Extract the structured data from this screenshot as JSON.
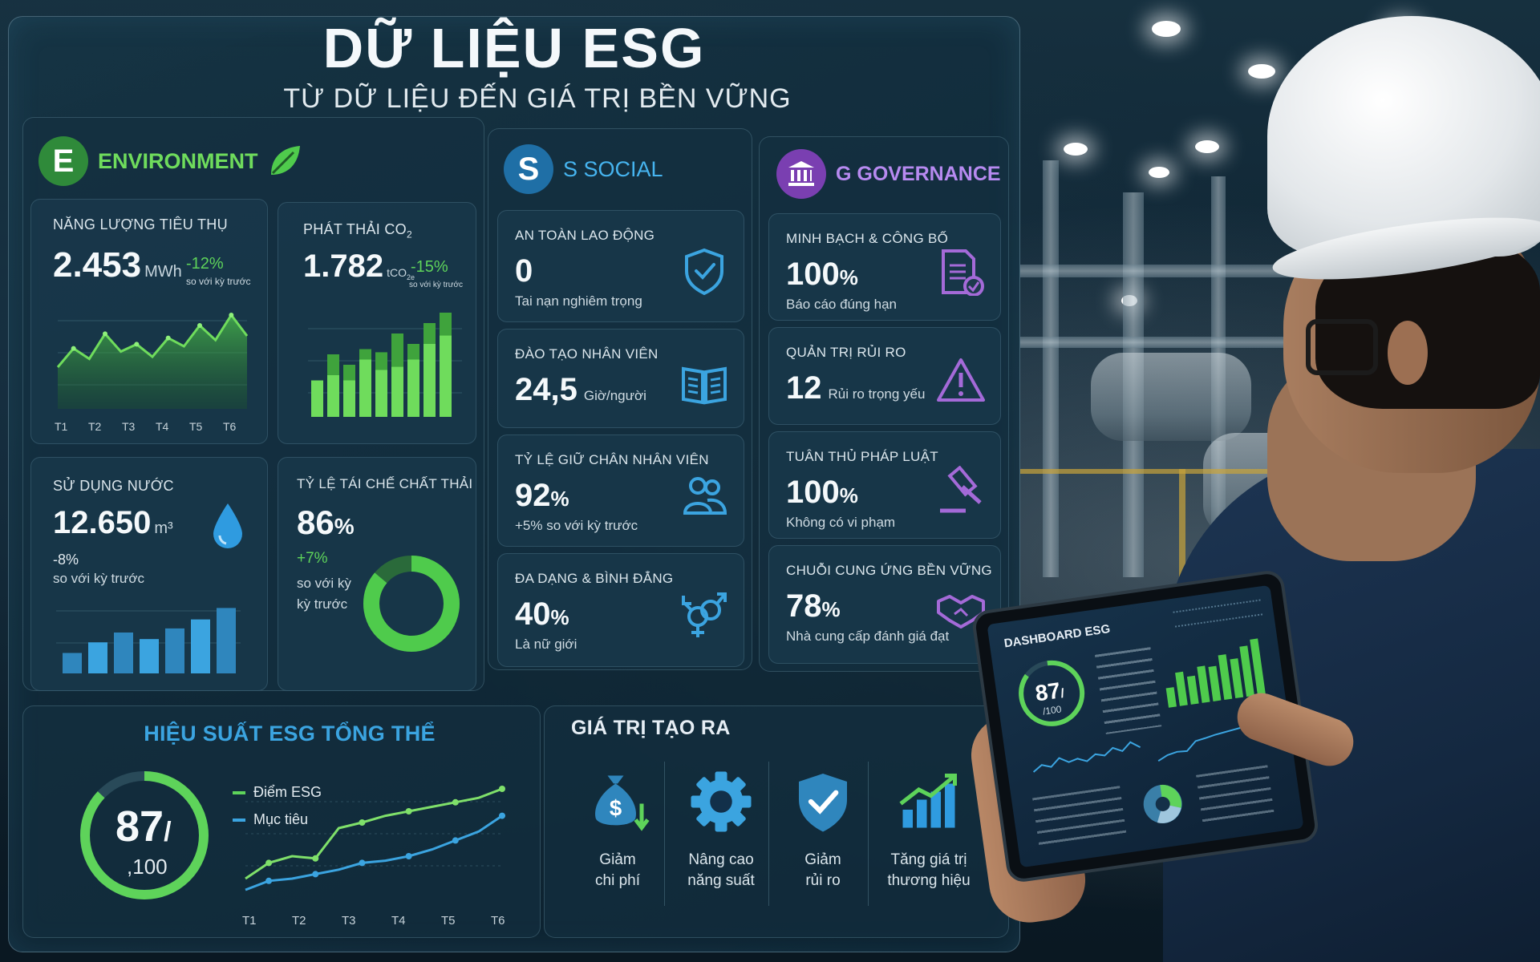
{
  "header": {
    "title": "DỮ LIỆU ESG",
    "subtitle": "TỪ DỮ LIỆU ĐẾN GIÁ TRỊ BỀN VỮNG"
  },
  "environment": {
    "badge": "E",
    "title": "ENVIRONMENT",
    "energy": {
      "label": "NĂNG LƯỢNG TIÊU THỤ",
      "value": "2.453",
      "unit": "MWh",
      "change": "-12%",
      "compare": "so với kỳ trước",
      "x_ticks": [
        "T1",
        "T2",
        "T3",
        "T4",
        "T5",
        "T6"
      ],
      "series": [
        40,
        58,
        48,
        72,
        55,
        62,
        50,
        68,
        60,
        80,
        66,
        90,
        70
      ]
    },
    "co2": {
      "label_prefix": "PHÁT THẢI CO",
      "label_sub": "2",
      "value": "1.782",
      "unit_prefix": "tCO",
      "unit_sub": "2e",
      "change": "-15%",
      "compare": "so với kỳ trước",
      "bars": [
        [
          35,
          35
        ],
        [
          40,
          60
        ],
        [
          35,
          50
        ],
        [
          55,
          65
        ],
        [
          45,
          62
        ],
        [
          48,
          80
        ],
        [
          55,
          70
        ],
        [
          70,
          90
        ],
        [
          78,
          100
        ]
      ]
    },
    "water": {
      "label": "SỬ DỤNG NƯỚC",
      "value": "12.650",
      "unit": "m³",
      "change": "-8%",
      "compare": "so với kỳ trước",
      "bars": [
        25,
        38,
        50,
        42,
        55,
        66,
        80
      ]
    },
    "recycle": {
      "label": "TỶ LỆ TÁI CHẾ CHẤT THẢI",
      "value": "86",
      "pct": "%",
      "change": "+7%",
      "compare_l1": "so với kỳ",
      "compare_l2": "kỳ trước",
      "ratio": 0.86
    },
    "color": "#5ed35a"
  },
  "social": {
    "badge": "S",
    "title": "S SOCIAL",
    "items": [
      {
        "label": "AN TOÀN LAO ĐỘNG",
        "value": "0",
        "unit": "",
        "desc": "Tai nạn nghiêm trọng",
        "icon": "shield-check-icon"
      },
      {
        "label": "ĐÀO TẠO NHÂN VIÊN",
        "value": "24,5",
        "unit": "Giờ/người",
        "desc": "",
        "icon": "book-icon"
      },
      {
        "label": "TỶ LỆ GIỮ CHÂN NHÂN VIÊN",
        "value": "92",
        "unit": "%",
        "desc": "+5% so với kỳ trước",
        "icon": "people-icon"
      },
      {
        "label": "ĐA DẠNG & BÌNH ĐẲNG",
        "value": "40",
        "unit": "%",
        "desc": "Là nữ giới",
        "icon": "gender-icon"
      }
    ],
    "color": "#3ba4e0"
  },
  "governance": {
    "title": "G GOVERNANCE",
    "items": [
      {
        "label": "MINH BẠCH & CÔNG BỐ",
        "value": "100",
        "unit": "%",
        "desc": "Báo cáo đúng hạn",
        "icon": "document-check-icon"
      },
      {
        "label": "QUẢN TRỊ RỦI RO",
        "value": "12",
        "unit": "Rủi ro trọng yếu",
        "desc": "",
        "icon": "warning-icon"
      },
      {
        "label": "TUÂN THỦ PHÁP LUẬT",
        "value": "100",
        "unit": "%",
        "desc": "Không có vi phạm",
        "icon": "gavel-icon"
      },
      {
        "label": "CHUỖI CUNG ỨNG BỀN VỮNG",
        "value": "78",
        "unit": "%",
        "desc": "Nhà cung cấp đánh giá đạt",
        "icon": "handshake-icon"
      }
    ],
    "color": "#a46ad8"
  },
  "overall": {
    "title": "HIỆU SUẤT ESG TỔNG THỂ",
    "score": "87",
    "slash": "/",
    "max": "100",
    "ratio": 0.87,
    "legend_score": "Điểm ESG",
    "legend_target": "Mục tiêu",
    "x_ticks": [
      "T1",
      "T2",
      "T3",
      "T4",
      "T5",
      "T6"
    ],
    "score_series": [
      10,
      24,
      30,
      28,
      55,
      60,
      66,
      70,
      74,
      78,
      82,
      90
    ],
    "target_series": [
      0,
      8,
      10,
      14,
      18,
      24,
      26,
      30,
      36,
      44,
      52,
      66
    ]
  },
  "value": {
    "title": "GIÁ TRỊ TẠO RA",
    "items": [
      {
        "l1": "Giảm",
        "l2": "chi phí",
        "icon": "money-bag-icon"
      },
      {
        "l1": "Nâng cao",
        "l2": "năng suất",
        "icon": "gear-icon"
      },
      {
        "l1": "Giảm",
        "l2": "rủi ro",
        "icon": "shield-check-icon"
      },
      {
        "l1": "Tăng giá trị",
        "l2": "thương hiệu",
        "icon": "growth-chart-icon"
      }
    ]
  },
  "tablet": {
    "title": "DASHBOARD ESG",
    "score": "87",
    "slash": "/",
    "max": "/100"
  }
}
